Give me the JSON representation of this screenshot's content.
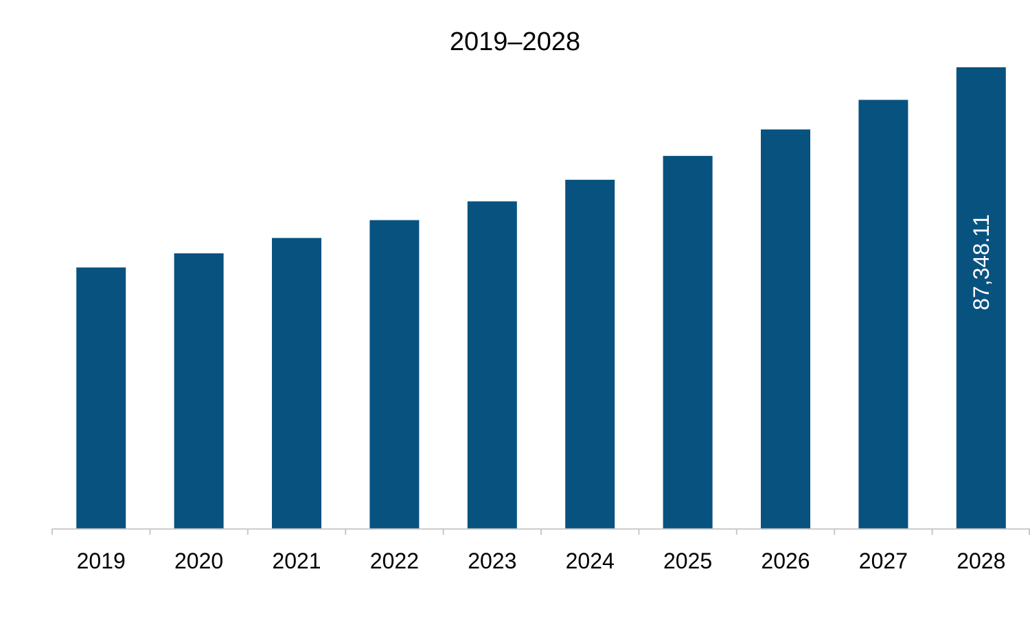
{
  "chart_data": {
    "type": "bar",
    "title": "2019–2028",
    "xlabel": "",
    "ylabel": "",
    "categories": [
      "2019",
      "2020",
      "2021",
      "2022",
      "2023",
      "2024",
      "2025",
      "2026",
      "2027",
      "2028"
    ],
    "values": [
      49450,
      52120,
      55030,
      58410,
      61960,
      66050,
      70570,
      75580,
      81180,
      87348.11
    ],
    "data_labels": [
      "",
      "",
      "",
      "",
      "",
      "",
      "",
      "",
      "",
      "87,348.11"
    ],
    "ylim": [
      0,
      87348.11
    ],
    "y_axis_visible": false,
    "grid": false,
    "legend": "none",
    "colors": {
      "bar": "#08527f",
      "axis": "#c8c8c8",
      "data_label": "#ffffff",
      "text": "#000000"
    }
  }
}
